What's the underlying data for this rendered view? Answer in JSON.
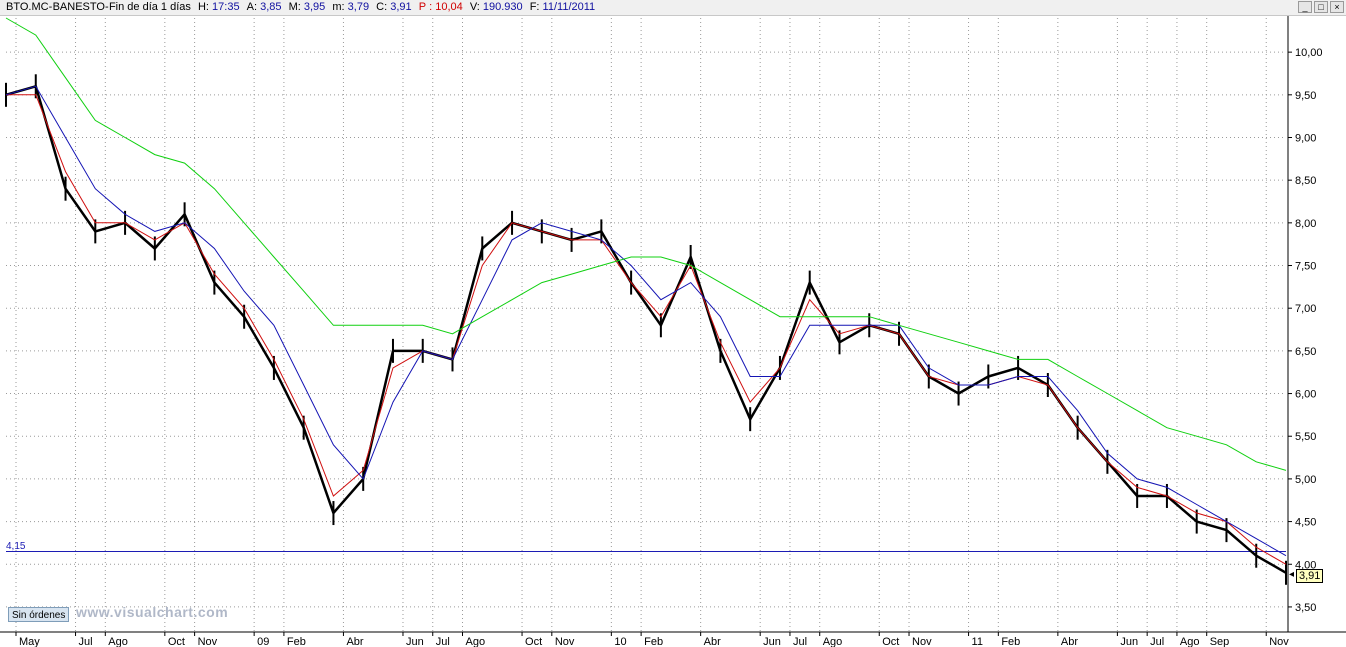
{
  "titlebar": {
    "symbol": "BTO.MC",
    "name": "BANESTO",
    "timeframe": "Fin de día 1 días",
    "h_label": "H:",
    "h_value": "17:35",
    "a_label": "A:",
    "a_value": "3,85",
    "m_label": "M:",
    "m_value": "3,95",
    "mn_label": "m:",
    "mn_value": "3,79",
    "c_label": "C:",
    "c_value": "3,91",
    "p_label": "P",
    "p_value": "10,04",
    "v_label": "V:",
    "v_value": "190.930",
    "f_label": "F:",
    "f_value": "11/11/2011"
  },
  "window_buttons": {
    "minimize": "_",
    "maximize": "□",
    "close": "×"
  },
  "toolbar": {
    "sin_ordenes": "Sin órdenes",
    "watermark": "www.visualchart.com"
  },
  "colors": {
    "price": "#000000",
    "ma_short": "#d01010",
    "ma_medium": "#1414b4",
    "ma_long": "#10d010",
    "support_line": "#1c1cb4",
    "grid": "#9a9a9a",
    "title_red": "#d00000",
    "title_blue": "#1010a0"
  },
  "chart_data": {
    "type": "line",
    "ylim": [
      3.3,
      10.4
    ],
    "yticks": [
      "10,00",
      "9,50",
      "9,00",
      "8,50",
      "8,00",
      "7,50",
      "7,00",
      "6,50",
      "6,00",
      "5,50",
      "5,00",
      "4,50",
      "4,00",
      "3,50"
    ],
    "ytick_values": [
      10.0,
      9.5,
      9.0,
      8.5,
      8.0,
      7.5,
      7.0,
      6.5,
      6.0,
      5.5,
      5.0,
      4.5,
      4.0,
      3.5
    ],
    "xlabels": [
      "May",
      "Jul",
      "Ago",
      "Oct",
      "Nov",
      "09",
      "Feb",
      "Abr",
      "Jun",
      "Jul",
      "Ago",
      "Oct",
      "Nov",
      "10",
      "Feb",
      "Abr",
      "Jun",
      "Jul",
      "Ago",
      "Oct",
      "Nov",
      "11",
      "Feb",
      "Abr",
      "Jun",
      "Jul",
      "Ago",
      "Sep",
      "Nov"
    ],
    "xlabel_index": [
      0,
      2,
      3,
      5,
      6,
      8,
      9,
      11,
      13,
      14,
      15,
      17,
      18,
      20,
      21,
      23,
      25,
      26,
      27,
      29,
      30,
      32,
      33,
      35,
      37,
      38,
      39,
      40,
      42
    ],
    "grid": true,
    "support_level": {
      "value": 4.15,
      "label": "4,15"
    },
    "last_price": {
      "value": 3.91,
      "label": "3,91"
    },
    "series": [
      {
        "key": "price",
        "style": "bars",
        "x": [
          0,
          1,
          2,
          3,
          4,
          5,
          6,
          7,
          8,
          9,
          10,
          11,
          12,
          13,
          14,
          15,
          16,
          17,
          18,
          19,
          20,
          21,
          22,
          23,
          24,
          25,
          26,
          27,
          28,
          29,
          30,
          31,
          32,
          33,
          34,
          35,
          36,
          37,
          38,
          39,
          40,
          41,
          42,
          43
        ],
        "values": [
          9.5,
          9.6,
          8.4,
          7.9,
          8.0,
          7.7,
          8.1,
          7.3,
          6.9,
          6.3,
          5.6,
          4.6,
          5.0,
          6.5,
          6.5,
          6.4,
          7.7,
          8.0,
          7.9,
          7.8,
          7.9,
          7.3,
          6.8,
          7.6,
          6.5,
          5.7,
          6.3,
          7.3,
          6.6,
          6.8,
          6.7,
          6.2,
          6.0,
          6.2,
          6.3,
          6.1,
          5.6,
          5.2,
          4.8,
          4.8,
          4.5,
          4.4,
          4.1,
          3.9
        ]
      },
      {
        "key": "ma_short",
        "style": "line",
        "x": [
          0,
          1,
          2,
          3,
          4,
          5,
          6,
          7,
          8,
          9,
          10,
          11,
          12,
          13,
          14,
          15,
          16,
          17,
          18,
          19,
          20,
          21,
          22,
          23,
          24,
          25,
          26,
          27,
          28,
          29,
          30,
          31,
          32,
          33,
          34,
          35,
          36,
          37,
          38,
          39,
          40,
          41,
          42,
          43
        ],
        "values": [
          9.5,
          9.5,
          8.6,
          8.0,
          8.0,
          7.8,
          8.0,
          7.4,
          7.0,
          6.4,
          5.7,
          4.8,
          5.1,
          6.3,
          6.5,
          6.4,
          7.5,
          8.0,
          7.9,
          7.8,
          7.8,
          7.3,
          6.9,
          7.5,
          6.6,
          5.9,
          6.3,
          7.1,
          6.7,
          6.8,
          6.7,
          6.2,
          6.1,
          6.1,
          6.2,
          6.1,
          5.6,
          5.2,
          4.9,
          4.8,
          4.6,
          4.5,
          4.2,
          4.0
        ]
      },
      {
        "key": "ma_medium",
        "style": "line",
        "x": [
          0,
          1,
          2,
          3,
          4,
          5,
          6,
          7,
          8,
          9,
          10,
          11,
          12,
          13,
          14,
          15,
          16,
          17,
          18,
          19,
          20,
          21,
          22,
          23,
          24,
          25,
          26,
          27,
          28,
          29,
          30,
          31,
          32,
          33,
          34,
          35,
          36,
          37,
          38,
          39,
          40,
          41,
          42,
          43
        ],
        "values": [
          9.5,
          9.6,
          9.0,
          8.4,
          8.1,
          7.9,
          8.0,
          7.7,
          7.2,
          6.8,
          6.1,
          5.4,
          5.0,
          5.9,
          6.5,
          6.4,
          7.1,
          7.8,
          8.0,
          7.9,
          7.8,
          7.5,
          7.1,
          7.3,
          6.9,
          6.2,
          6.2,
          6.8,
          6.8,
          6.8,
          6.8,
          6.3,
          6.1,
          6.1,
          6.2,
          6.2,
          5.8,
          5.3,
          5.0,
          4.9,
          4.7,
          4.5,
          4.3,
          4.1
        ]
      },
      {
        "key": "ma_long",
        "style": "line",
        "x": [
          0,
          1,
          2,
          3,
          4,
          5,
          6,
          7,
          8,
          9,
          10,
          11,
          12,
          13,
          14,
          15,
          16,
          17,
          18,
          19,
          20,
          21,
          22,
          23,
          24,
          25,
          26,
          27,
          28,
          29,
          30,
          31,
          32,
          33,
          34,
          35,
          36,
          37,
          38,
          39,
          40,
          41,
          42,
          43
        ],
        "values": [
          10.4,
          10.2,
          9.7,
          9.2,
          9.0,
          8.8,
          8.7,
          8.4,
          8.0,
          7.6,
          7.2,
          6.8,
          6.8,
          6.8,
          6.8,
          6.7,
          6.9,
          7.1,
          7.3,
          7.4,
          7.5,
          7.6,
          7.6,
          7.5,
          7.3,
          7.1,
          6.9,
          6.9,
          6.9,
          6.9,
          6.8,
          6.7,
          6.6,
          6.5,
          6.4,
          6.4,
          6.2,
          6.0,
          5.8,
          5.6,
          5.5,
          5.4,
          5.2,
          5.1
        ]
      }
    ]
  }
}
